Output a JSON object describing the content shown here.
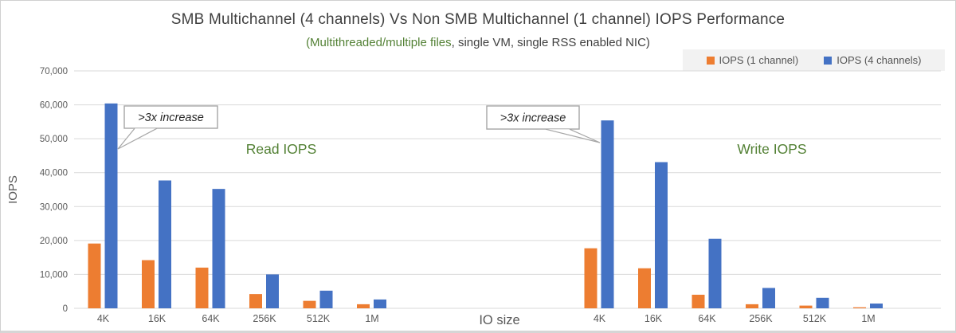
{
  "chart_data": {
    "type": "bar",
    "title": "SMB Multichannel (4 channels) Vs Non SMB Multichannel (1 channel) IOPS Performance",
    "subtitle_green": "(Multithreaded/multiple files",
    "subtitle_rest": ", single VM, single RSS enabled NIC)",
    "xlabel": "IO size",
    "ylabel": "IOPS",
    "ylim": [
      0,
      70000
    ],
    "ytick_step": 10000,
    "grid": true,
    "legend_position": "top-right",
    "legend": [
      {
        "label": "IOPS (1 channel)",
        "color": "#ED7D31"
      },
      {
        "label": "IOPS (4 channels)",
        "color": "#4472C4"
      }
    ],
    "categories": [
      "4K",
      "16K",
      "64K",
      "256K",
      "512K",
      "1M"
    ],
    "groups": [
      {
        "label": "Read IOPS",
        "series": [
          {
            "name": "IOPS (1 channel)",
            "color": "#ED7D31",
            "values": [
              19100,
              14200,
              12000,
              4200,
              2200,
              1200
            ]
          },
          {
            "name": "IOPS (4 channels)",
            "color": "#4472C4",
            "values": [
              60400,
              37700,
              35200,
              10000,
              5200,
              2600
            ]
          }
        ]
      },
      {
        "label": "Write IOPS",
        "series": [
          {
            "name": "IOPS (1 channel)",
            "color": "#ED7D31",
            "values": [
              17700,
              11800,
              4000,
              1200,
              800,
              300
            ]
          },
          {
            "name": "IOPS (4 channels)",
            "color": "#4472C4",
            "values": [
              55400,
              43100,
              20500,
              6000,
              3100,
              1400
            ]
          }
        ]
      }
    ],
    "annotations": [
      {
        "text": ">3x increase",
        "target": "Read 4K (4 channels) bar"
      },
      {
        "text": ">3x increase",
        "target": "Write 4K (4 channels) bar"
      }
    ],
    "colors": {
      "axis_text": "#595959",
      "grid_line": "#d9d9d9",
      "group_label": "#538135",
      "title_text": "#404040",
      "callout_border": "#a6a6a6",
      "callout_text": "#262626"
    }
  }
}
